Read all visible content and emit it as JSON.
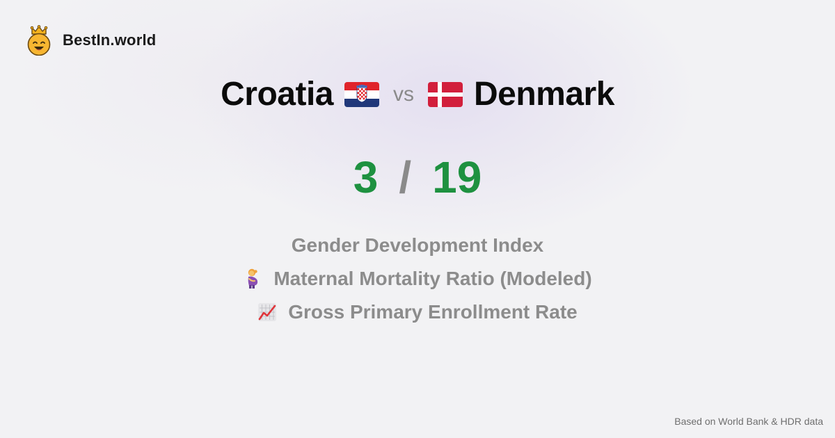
{
  "brand": {
    "name": "BestIn.world",
    "logo_icon": "crown-smiley-icon"
  },
  "comparison": {
    "left": {
      "name": "Croatia",
      "flag_icon": "croatia-flag-icon",
      "score": "3"
    },
    "vs_label": "vs",
    "right": {
      "name": "Denmark",
      "flag_icon": "denmark-flag-icon",
      "score": "19"
    },
    "separator": "/"
  },
  "metrics": [
    {
      "label": "Gender Development Index",
      "icon": ""
    },
    {
      "label": "Maternal Mortality Ratio (Modeled)",
      "icon": "pregnant-woman-icon"
    },
    {
      "label": "Gross Primary Enrollment Rate",
      "icon": "chart-increasing-icon"
    }
  ],
  "footer": {
    "source": "Based on World Bank & HDR data"
  },
  "colors": {
    "score": "#1e9140",
    "muted": "#8c8c8c",
    "heading": "#0b0b0b",
    "background": "#f2f2f4"
  }
}
